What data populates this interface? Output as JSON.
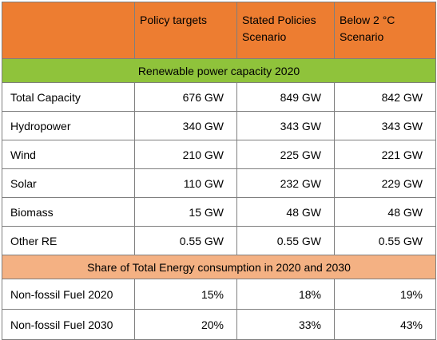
{
  "header": {
    "col0": "",
    "col1": "Policy targets",
    "col2": "Stated Policies Scenario",
    "col3": "Below 2 °C Scenario"
  },
  "section1": {
    "title": "Renewable power capacity 2020"
  },
  "rows1": [
    {
      "label": "Total Capacity",
      "policy": "676 GW",
      "stated": "849 GW",
      "below2": "842 GW"
    },
    {
      "label": "Hydropower",
      "policy": "340 GW",
      "stated": "343 GW",
      "below2": "343 GW"
    },
    {
      "label": "Wind",
      "policy": "210 GW",
      "stated": "225 GW",
      "below2": "221 GW"
    },
    {
      "label": "Solar",
      "policy": "110 GW",
      "stated": "232 GW",
      "below2": "229 GW"
    },
    {
      "label": "Biomass",
      "policy": "15 GW",
      "stated": "48 GW",
      "below2": "48 GW"
    },
    {
      "label": "Other RE",
      "policy": "0.55 GW",
      "stated": "0.55 GW",
      "below2": "0.55 GW"
    }
  ],
  "section2": {
    "title": "Share of Total Energy consumption in 2020 and 2030"
  },
  "rows2": [
    {
      "label": "Non-fossil Fuel 2020",
      "policy": "15%",
      "stated": "18%",
      "below2": "19%"
    },
    {
      "label": "Non-fossil Fuel 2030",
      "policy": "20%",
      "stated": "33%",
      "below2": "43%"
    }
  ],
  "colors": {
    "header": "#ed7d31",
    "section1": "#8fc33b",
    "section2": "#f4b183",
    "border": "#7f7f7f"
  }
}
